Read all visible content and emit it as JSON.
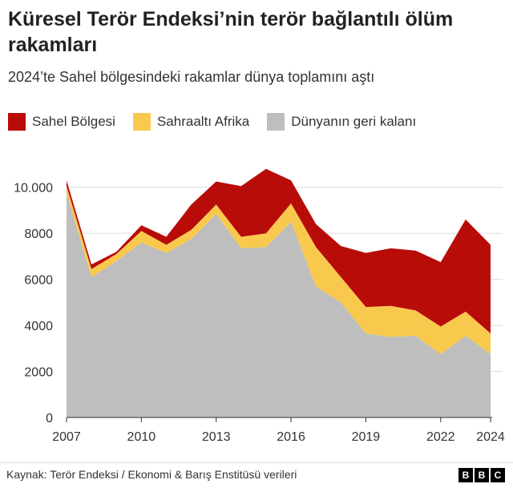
{
  "title": "Küresel Terör Endeksi’nin terör bağlantılı ölüm rakamları",
  "subtitle": "2024’te Sahel bölgesindeki rakamlar dünya toplamını aştı",
  "source": "Kaynak: Terör Endeksi / Ekonomi & Barış Enstitüsü verileri",
  "logo": [
    "B",
    "B",
    "C"
  ],
  "colors": {
    "sahel": "#B80C09",
    "ssa": "#F9C94E",
    "rest": "#BEBEBE",
    "grid": "#dddddd"
  },
  "chart_data": {
    "type": "area",
    "stacked": true,
    "x": [
      2007,
      2008,
      2009,
      2010,
      2011,
      2012,
      2013,
      2014,
      2015,
      2016,
      2017,
      2018,
      2019,
      2020,
      2021,
      2022,
      2023,
      2024
    ],
    "series": [
      {
        "name": "Dünyanın geri kalanı",
        "values": [
          9750,
          6100,
          6800,
          7600,
          7150,
          7750,
          8850,
          7350,
          7400,
          8500,
          5700,
          5000,
          3650,
          3500,
          3550,
          2750,
          3550,
          2750
        ]
      },
      {
        "name": "Sahraaltı Afrika",
        "values": [
          300,
          350,
          300,
          500,
          350,
          400,
          400,
          500,
          600,
          800,
          1700,
          1100,
          1150,
          1350,
          1100,
          1200,
          1050,
          900
        ]
      },
      {
        "name": "Sahel Bölgesi",
        "values": [
          250,
          200,
          100,
          250,
          350,
          1100,
          1000,
          2200,
          2800,
          1000,
          1000,
          1350,
          2350,
          2500,
          2600,
          2800,
          4000,
          3850
        ]
      }
    ],
    "ylim": [
      0,
      11000
    ],
    "yticks": [
      {
        "value": 0,
        "label": "0"
      },
      {
        "value": 2000,
        "label": "2000"
      },
      {
        "value": 4000,
        "label": "4000"
      },
      {
        "value": 6000,
        "label": "6000"
      },
      {
        "value": 8000,
        "label": "8000"
      },
      {
        "value": 10000,
        "label": "10.000"
      }
    ],
    "xticks": [
      2007,
      2010,
      2013,
      2016,
      2019,
      2022,
      2024
    ],
    "grid": true,
    "legend_position": "top"
  }
}
